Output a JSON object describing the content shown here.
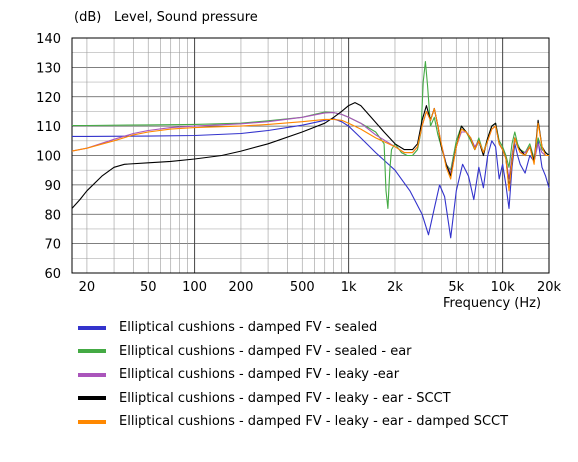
{
  "chart_data": {
    "type": "line",
    "title": "Level, Sound pressure",
    "ylabel": "(dB)",
    "xlabel": "Frequency  (Hz)",
    "xscale": "log",
    "xlim": [
      16,
      20000
    ],
    "ylim": [
      60,
      140
    ],
    "grid": true,
    "legend_position": "bottom",
    "yticks": [
      "60",
      "70",
      "80",
      "90",
      "100",
      "110",
      "120",
      "130",
      "140"
    ],
    "xticks": [
      {
        "value": 20,
        "label": "20"
      },
      {
        "value": 50,
        "label": "50"
      },
      {
        "value": 100,
        "label": "100"
      },
      {
        "value": 200,
        "label": "200"
      },
      {
        "value": 500,
        "label": "500"
      },
      {
        "value": 1000,
        "label": "1k"
      },
      {
        "value": 2000,
        "label": "2k"
      },
      {
        "value": 5000,
        "label": "5k"
      },
      {
        "value": 10000,
        "label": "10k"
      },
      {
        "value": 20000,
        "label": "20k"
      }
    ],
    "series": [
      {
        "name": "Elliptical cushions - damped FV - sealed",
        "color": "#3333cc",
        "points": [
          [
            16,
            106.5
          ],
          [
            20,
            106.5
          ],
          [
            50,
            106.6
          ],
          [
            100,
            106.8
          ],
          [
            200,
            107.5
          ],
          [
            300,
            108.5
          ],
          [
            500,
            110.3
          ],
          [
            700,
            112
          ],
          [
            800,
            112.5
          ],
          [
            900,
            111.5
          ],
          [
            1000,
            110
          ],
          [
            1200,
            106
          ],
          [
            1500,
            101
          ],
          [
            2000,
            95
          ],
          [
            2500,
            88
          ],
          [
            3000,
            80
          ],
          [
            3300,
            73
          ],
          [
            3600,
            82
          ],
          [
            3900,
            90
          ],
          [
            4200,
            86
          ],
          [
            4600,
            72
          ],
          [
            5000,
            88
          ],
          [
            5500,
            97
          ],
          [
            6000,
            93
          ],
          [
            6500,
            85
          ],
          [
            7000,
            96
          ],
          [
            7500,
            89
          ],
          [
            8000,
            100
          ],
          [
            8500,
            105
          ],
          [
            9000,
            103
          ],
          [
            9500,
            92
          ],
          [
            10000,
            97
          ],
          [
            10500,
            90
          ],
          [
            11000,
            82
          ],
          [
            11500,
            96
          ],
          [
            12000,
            104
          ],
          [
            12500,
            100
          ],
          [
            13000,
            97
          ],
          [
            14000,
            94
          ],
          [
            15000,
            100
          ],
          [
            16000,
            98
          ],
          [
            17000,
            105
          ],
          [
            18000,
            96
          ],
          [
            19000,
            93
          ],
          [
            20000,
            89
          ]
        ]
      },
      {
        "name": "Elliptical cushions - damped FV - sealed - ear",
        "color": "#44aa44",
        "points": [
          [
            16,
            110.2
          ],
          [
            20,
            110.2
          ],
          [
            50,
            110.4
          ],
          [
            100,
            110.6
          ],
          [
            200,
            111
          ],
          [
            300,
            111.8
          ],
          [
            500,
            113
          ],
          [
            600,
            114
          ],
          [
            700,
            114.8
          ],
          [
            800,
            114.6
          ],
          [
            900,
            114
          ],
          [
            1000,
            113
          ],
          [
            1200,
            111
          ],
          [
            1500,
            108
          ],
          [
            1700,
            104
          ],
          [
            1750,
            88
          ],
          [
            1800,
            82
          ],
          [
            1850,
            95
          ],
          [
            1900,
            102
          ],
          [
            2000,
            104
          ],
          [
            2200,
            101
          ],
          [
            2400,
            100
          ],
          [
            2600,
            100
          ],
          [
            2800,
            102
          ],
          [
            2950,
            108
          ],
          [
            3050,
            125
          ],
          [
            3150,
            132
          ],
          [
            3250,
            124
          ],
          [
            3400,
            110
          ],
          [
            3600,
            113
          ],
          [
            3800,
            107
          ],
          [
            4000,
            103
          ],
          [
            4300,
            97
          ],
          [
            4600,
            95
          ],
          [
            5000,
            105
          ],
          [
            5400,
            110
          ],
          [
            5800,
            108
          ],
          [
            6200,
            105
          ],
          [
            6600,
            102
          ],
          [
            7000,
            106
          ],
          [
            7500,
            101
          ],
          [
            8000,
            106
          ],
          [
            8500,
            110
          ],
          [
            9000,
            111
          ],
          [
            9500,
            105
          ],
          [
            10000,
            103
          ],
          [
            10500,
            100
          ],
          [
            11000,
            96
          ],
          [
            11500,
            104
          ],
          [
            12000,
            108
          ],
          [
            12500,
            104
          ],
          [
            13000,
            102
          ],
          [
            14000,
            101
          ],
          [
            15000,
            104
          ],
          [
            16000,
            99
          ],
          [
            17000,
            106
          ],
          [
            18000,
            102
          ],
          [
            19000,
            101
          ],
          [
            20000,
            100
          ]
        ]
      },
      {
        "name": "Elliptical cushions - damped FV - leaky -ear",
        "color": "#aa55bb",
        "points": [
          [
            16,
            101.5
          ],
          [
            20,
            102.5
          ],
          [
            30,
            105.5
          ],
          [
            40,
            107.5
          ],
          [
            50,
            108.5
          ],
          [
            70,
            109.5
          ],
          [
            100,
            110
          ],
          [
            200,
            110.8
          ],
          [
            300,
            111.5
          ],
          [
            500,
            113
          ],
          [
            700,
            114.5
          ],
          [
            800,
            114.6
          ],
          [
            900,
            114
          ],
          [
            1000,
            113
          ],
          [
            1200,
            111
          ],
          [
            1500,
            107
          ],
          [
            2000,
            103
          ],
          [
            2300,
            101
          ],
          [
            2600,
            101
          ],
          [
            2800,
            103
          ],
          [
            3000,
            110
          ],
          [
            3200,
            115
          ],
          [
            3400,
            112
          ],
          [
            3600,
            116
          ],
          [
            3800,
            110
          ],
          [
            4000,
            104
          ],
          [
            4300,
            97
          ],
          [
            4600,
            94
          ],
          [
            5000,
            103
          ],
          [
            5400,
            108
          ],
          [
            5800,
            108
          ],
          [
            6200,
            106
          ],
          [
            6600,
            103
          ],
          [
            7000,
            105
          ],
          [
            7500,
            101
          ],
          [
            8000,
            105
          ],
          [
            8500,
            109
          ],
          [
            9000,
            110
          ],
          [
            9500,
            104
          ],
          [
            10000,
            102
          ],
          [
            10500,
            99
          ],
          [
            11000,
            92
          ],
          [
            11500,
            100
          ],
          [
            12000,
            106
          ],
          [
            12500,
            103
          ],
          [
            13000,
            101
          ],
          [
            14000,
            101
          ],
          [
            15000,
            103
          ],
          [
            16000,
            98
          ],
          [
            17000,
            104
          ],
          [
            18000,
            101
          ],
          [
            19000,
            100
          ],
          [
            20000,
            100
          ]
        ]
      },
      {
        "name": "Elliptical cushions - damped FV - leaky - ear - SCCT",
        "color": "#000000",
        "points": [
          [
            16,
            82
          ],
          [
            18,
            85
          ],
          [
            20,
            88
          ],
          [
            25,
            93
          ],
          [
            30,
            96
          ],
          [
            35,
            97
          ],
          [
            50,
            97.5
          ],
          [
            70,
            98
          ],
          [
            100,
            98.8
          ],
          [
            150,
            100
          ],
          [
            200,
            101.5
          ],
          [
            300,
            104
          ],
          [
            500,
            108
          ],
          [
            700,
            111
          ],
          [
            800,
            113
          ],
          [
            900,
            115
          ],
          [
            1000,
            117
          ],
          [
            1100,
            118
          ],
          [
            1200,
            117
          ],
          [
            1400,
            113
          ],
          [
            1700,
            108
          ],
          [
            2000,
            104
          ],
          [
            2300,
            102
          ],
          [
            2600,
            102
          ],
          [
            2800,
            104
          ],
          [
            3000,
            112
          ],
          [
            3200,
            117
          ],
          [
            3400,
            112
          ],
          [
            3600,
            116
          ],
          [
            3800,
            110
          ],
          [
            4000,
            103
          ],
          [
            4300,
            97
          ],
          [
            4600,
            93
          ],
          [
            5000,
            103
          ],
          [
            5400,
            110
          ],
          [
            5800,
            108
          ],
          [
            6200,
            106
          ],
          [
            6600,
            102
          ],
          [
            7000,
            105
          ],
          [
            7500,
            100
          ],
          [
            8000,
            106
          ],
          [
            8500,
            110
          ],
          [
            9000,
            111
          ],
          [
            9500,
            104
          ],
          [
            10000,
            102
          ],
          [
            10500,
            99
          ],
          [
            11000,
            89
          ],
          [
            11500,
            98
          ],
          [
            12000,
            106
          ],
          [
            12500,
            103
          ],
          [
            13000,
            102
          ],
          [
            14000,
            100
          ],
          [
            15000,
            103
          ],
          [
            16000,
            98
          ],
          [
            17000,
            112
          ],
          [
            18000,
            103
          ],
          [
            19000,
            101
          ],
          [
            20000,
            100
          ]
        ]
      },
      {
        "name": "Elliptical cushions - damped FV - leaky - ear - damped SCCT",
        "color": "#ff8800",
        "points": [
          [
            16,
            101.5
          ],
          [
            20,
            102.5
          ],
          [
            30,
            105
          ],
          [
            40,
            107
          ],
          [
            50,
            108
          ],
          [
            70,
            109
          ],
          [
            100,
            109.5
          ],
          [
            200,
            110
          ],
          [
            300,
            110.6
          ],
          [
            500,
            111.5
          ],
          [
            700,
            112.3
          ],
          [
            800,
            112.3
          ],
          [
            900,
            112
          ],
          [
            1000,
            111
          ],
          [
            1200,
            109
          ],
          [
            1500,
            106
          ],
          [
            2000,
            103
          ],
          [
            2300,
            101
          ],
          [
            2600,
            101
          ],
          [
            2800,
            103
          ],
          [
            3000,
            110
          ],
          [
            3200,
            115
          ],
          [
            3400,
            112
          ],
          [
            3600,
            116
          ],
          [
            3800,
            110
          ],
          [
            4000,
            104
          ],
          [
            4300,
            96
          ],
          [
            4600,
            92
          ],
          [
            5000,
            103
          ],
          [
            5400,
            109
          ],
          [
            5800,
            108
          ],
          [
            6200,
            106
          ],
          [
            6600,
            102
          ],
          [
            7000,
            105
          ],
          [
            7500,
            101
          ],
          [
            8000,
            105
          ],
          [
            8500,
            109
          ],
          [
            9000,
            110
          ],
          [
            9500,
            104
          ],
          [
            10000,
            102
          ],
          [
            10500,
            99
          ],
          [
            11000,
            88
          ],
          [
            11500,
            98
          ],
          [
            12000,
            106
          ],
          [
            12500,
            103
          ],
          [
            13000,
            101
          ],
          [
            14000,
            100
          ],
          [
            15000,
            103
          ],
          [
            16000,
            97
          ],
          [
            17000,
            111
          ],
          [
            18000,
            103
          ],
          [
            19000,
            100
          ],
          [
            20000,
            100
          ]
        ]
      }
    ]
  }
}
